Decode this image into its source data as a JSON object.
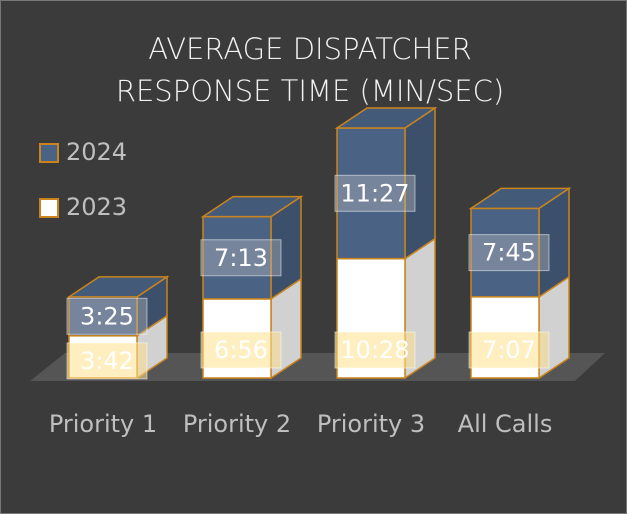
{
  "chart_data": {
    "type": "bar3d_stacked",
    "title": "AVERAGE DISPATCHER RESPONSE TIME (MIN/SEC)",
    "categories": [
      "Priority 1",
      "Priority 2",
      "Priority 3",
      "All Calls"
    ],
    "series": [
      {
        "name": "2023",
        "color": "#ffffff",
        "values": [
          222,
          416,
          628,
          427
        ],
        "value_labels": [
          "3:42",
          "6:56",
          "10:28",
          "7:07"
        ]
      },
      {
        "name": "2024",
        "color": "#4a6283",
        "values": [
          205,
          433,
          687,
          465
        ],
        "value_labels": [
          "3:25",
          "7:13",
          "11:27",
          "7:45"
        ]
      }
    ],
    "edge_color": "#c9841d"
  }
}
